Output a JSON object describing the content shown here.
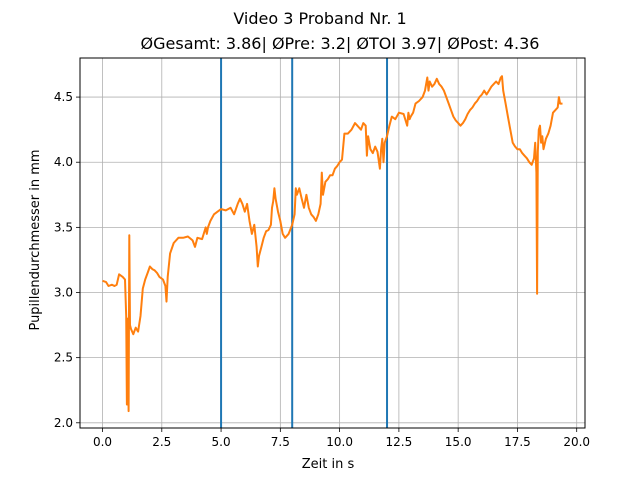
{
  "chart_data": {
    "type": "line",
    "title": "Video 3 Proband Nr. 1",
    "subtitle": "ØGesamt: 3.86| ØPre: 3.2| ØTOI 3.97| ØPost: 4.36",
    "xlabel": "Zeit in s",
    "ylabel": "Pupillendurchmesser in mm",
    "xlim": [
      -0.95,
      20.35
    ],
    "ylim": [
      1.96,
      4.8
    ],
    "x_ticks": [
      0,
      2.5,
      5,
      7.5,
      10,
      12.5,
      15,
      17.5,
      20
    ],
    "x_tick_labels": [
      "0.0",
      "2.5",
      "5.0",
      "7.5",
      "10.0",
      "12.5",
      "15.0",
      "17.5",
      "20.0"
    ],
    "y_ticks": [
      2.0,
      2.5,
      3.0,
      3.5,
      4.0,
      4.5
    ],
    "y_tick_labels": [
      "2.0",
      "2.5",
      "3.0",
      "3.5",
      "4.0",
      "4.5"
    ],
    "grid": true,
    "vertical_lines": [
      {
        "x": 5.0,
        "color": "#1f77b4"
      },
      {
        "x": 8.0,
        "color": "#1f77b4"
      },
      {
        "x": 12.0,
        "color": "#1f77b4"
      }
    ],
    "series": [
      {
        "color": "#ff7f0e",
        "points": [
          [
            0.0,
            3.09
          ],
          [
            0.15,
            3.08
          ],
          [
            0.25,
            3.05
          ],
          [
            0.4,
            3.06
          ],
          [
            0.5,
            3.05
          ],
          [
            0.6,
            3.06
          ],
          [
            0.7,
            3.14
          ],
          [
            0.85,
            3.12
          ],
          [
            0.95,
            3.1
          ],
          [
            1.0,
            2.82
          ],
          [
            1.03,
            2.14
          ],
          [
            1.06,
            2.8
          ],
          [
            1.1,
            2.09
          ],
          [
            1.13,
            3.44
          ],
          [
            1.16,
            2.75
          ],
          [
            1.2,
            2.72
          ],
          [
            1.3,
            2.68
          ],
          [
            1.4,
            2.73
          ],
          [
            1.5,
            2.7
          ],
          [
            1.6,
            2.82
          ],
          [
            1.7,
            3.03
          ],
          [
            1.8,
            3.1
          ],
          [
            1.9,
            3.15
          ],
          [
            2.0,
            3.2
          ],
          [
            2.1,
            3.18
          ],
          [
            2.2,
            3.17
          ],
          [
            2.3,
            3.15
          ],
          [
            2.4,
            3.12
          ],
          [
            2.55,
            3.1
          ],
          [
            2.65,
            3.05
          ],
          [
            2.7,
            2.93
          ],
          [
            2.75,
            3.12
          ],
          [
            2.85,
            3.3
          ],
          [
            3.0,
            3.38
          ],
          [
            3.2,
            3.42
          ],
          [
            3.4,
            3.42
          ],
          [
            3.6,
            3.43
          ],
          [
            3.8,
            3.4
          ],
          [
            3.9,
            3.35
          ],
          [
            4.0,
            3.42
          ],
          [
            4.2,
            3.41
          ],
          [
            4.3,
            3.47
          ],
          [
            4.35,
            3.5
          ],
          [
            4.4,
            3.45
          ],
          [
            4.45,
            3.5
          ],
          [
            4.55,
            3.55
          ],
          [
            4.7,
            3.6
          ],
          [
            4.85,
            3.62
          ],
          [
            5.0,
            3.64
          ],
          [
            5.2,
            3.63
          ],
          [
            5.4,
            3.65
          ],
          [
            5.55,
            3.6
          ],
          [
            5.7,
            3.68
          ],
          [
            5.8,
            3.72
          ],
          [
            5.9,
            3.68
          ],
          [
            6.0,
            3.62
          ],
          [
            6.1,
            3.68
          ],
          [
            6.2,
            3.55
          ],
          [
            6.3,
            3.45
          ],
          [
            6.4,
            3.52
          ],
          [
            6.5,
            3.35
          ],
          [
            6.55,
            3.2
          ],
          [
            6.6,
            3.28
          ],
          [
            6.7,
            3.35
          ],
          [
            6.8,
            3.42
          ],
          [
            6.9,
            3.47
          ],
          [
            7.0,
            3.48
          ],
          [
            7.1,
            3.52
          ],
          [
            7.15,
            3.65
          ],
          [
            7.2,
            3.7
          ],
          [
            7.25,
            3.8
          ],
          [
            7.3,
            3.72
          ],
          [
            7.4,
            3.62
          ],
          [
            7.5,
            3.55
          ],
          [
            7.6,
            3.45
          ],
          [
            7.7,
            3.42
          ],
          [
            7.85,
            3.45
          ],
          [
            8.0,
            3.52
          ],
          [
            8.1,
            3.6
          ],
          [
            8.15,
            3.8
          ],
          [
            8.2,
            3.75
          ],
          [
            8.3,
            3.8
          ],
          [
            8.4,
            3.72
          ],
          [
            8.5,
            3.65
          ],
          [
            8.6,
            3.75
          ],
          [
            8.7,
            3.65
          ],
          [
            8.8,
            3.6
          ],
          [
            8.9,
            3.58
          ],
          [
            9.0,
            3.55
          ],
          [
            9.1,
            3.6
          ],
          [
            9.2,
            3.68
          ],
          [
            9.25,
            3.92
          ],
          [
            9.3,
            3.75
          ],
          [
            9.4,
            3.85
          ],
          [
            9.5,
            3.87
          ],
          [
            9.6,
            3.9
          ],
          [
            9.7,
            3.9
          ],
          [
            9.8,
            3.95
          ],
          [
            9.9,
            3.97
          ],
          [
            10.0,
            4.0
          ],
          [
            10.1,
            4.02
          ],
          [
            10.2,
            4.22
          ],
          [
            10.35,
            4.22
          ],
          [
            10.5,
            4.25
          ],
          [
            10.65,
            4.3
          ],
          [
            10.75,
            4.28
          ],
          [
            10.9,
            4.25
          ],
          [
            11.0,
            4.3
          ],
          [
            11.1,
            4.28
          ],
          [
            11.15,
            4.05
          ],
          [
            11.2,
            4.2
          ],
          [
            11.3,
            4.1
          ],
          [
            11.4,
            4.07
          ],
          [
            11.5,
            4.12
          ],
          [
            11.6,
            4.08
          ],
          [
            11.7,
            3.95
          ],
          [
            11.75,
            4.1
          ],
          [
            11.8,
            4.18
          ],
          [
            11.85,
            4.0
          ],
          [
            11.9,
            4.15
          ],
          [
            12.0,
            4.2
          ],
          [
            12.1,
            4.28
          ],
          [
            12.2,
            4.35
          ],
          [
            12.35,
            4.33
          ],
          [
            12.5,
            4.38
          ],
          [
            12.7,
            4.37
          ],
          [
            12.85,
            4.28
          ],
          [
            12.9,
            4.38
          ],
          [
            12.95,
            4.33
          ],
          [
            13.0,
            4.35
          ],
          [
            13.1,
            4.38
          ],
          [
            13.2,
            4.45
          ],
          [
            13.35,
            4.47
          ],
          [
            13.5,
            4.5
          ],
          [
            13.6,
            4.55
          ],
          [
            13.7,
            4.65
          ],
          [
            13.75,
            4.55
          ],
          [
            13.8,
            4.62
          ],
          [
            13.9,
            4.58
          ],
          [
            14.0,
            4.6
          ],
          [
            14.1,
            4.64
          ],
          [
            14.2,
            4.6
          ],
          [
            14.3,
            4.58
          ],
          [
            14.4,
            4.55
          ],
          [
            14.5,
            4.5
          ],
          [
            14.6,
            4.45
          ],
          [
            14.7,
            4.4
          ],
          [
            14.8,
            4.35
          ],
          [
            14.9,
            4.32
          ],
          [
            15.0,
            4.3
          ],
          [
            15.1,
            4.28
          ],
          [
            15.2,
            4.3
          ],
          [
            15.3,
            4.33
          ],
          [
            15.4,
            4.37
          ],
          [
            15.5,
            4.4
          ],
          [
            15.6,
            4.42
          ],
          [
            15.7,
            4.45
          ],
          [
            15.8,
            4.47
          ],
          [
            15.9,
            4.5
          ],
          [
            16.0,
            4.52
          ],
          [
            16.1,
            4.55
          ],
          [
            16.2,
            4.52
          ],
          [
            16.3,
            4.55
          ],
          [
            16.4,
            4.58
          ],
          [
            16.5,
            4.6
          ],
          [
            16.6,
            4.62
          ],
          [
            16.7,
            4.6
          ],
          [
            16.8,
            4.65
          ],
          [
            16.85,
            4.66
          ],
          [
            16.9,
            4.55
          ],
          [
            17.0,
            4.45
          ],
          [
            17.1,
            4.35
          ],
          [
            17.2,
            4.25
          ],
          [
            17.3,
            4.15
          ],
          [
            17.4,
            4.12
          ],
          [
            17.5,
            4.1
          ],
          [
            17.6,
            4.1
          ],
          [
            17.7,
            4.07
          ],
          [
            17.8,
            4.05
          ],
          [
            17.9,
            4.03
          ],
          [
            18.0,
            4.0
          ],
          [
            18.1,
            3.98
          ],
          [
            18.2,
            4.03
          ],
          [
            18.25,
            4.15
          ],
          [
            18.3,
            3.92
          ],
          [
            18.33,
            2.99
          ],
          [
            18.36,
            4.08
          ],
          [
            18.4,
            4.25
          ],
          [
            18.45,
            4.28
          ],
          [
            18.5,
            4.15
          ],
          [
            18.55,
            4.2
          ],
          [
            18.6,
            4.1
          ],
          [
            18.7,
            4.18
          ],
          [
            18.8,
            4.22
          ],
          [
            18.9,
            4.28
          ],
          [
            19.0,
            4.38
          ],
          [
            19.1,
            4.4
          ],
          [
            19.2,
            4.42
          ],
          [
            19.25,
            4.5
          ],
          [
            19.3,
            4.45
          ],
          [
            19.4,
            4.45
          ]
        ]
      }
    ]
  }
}
